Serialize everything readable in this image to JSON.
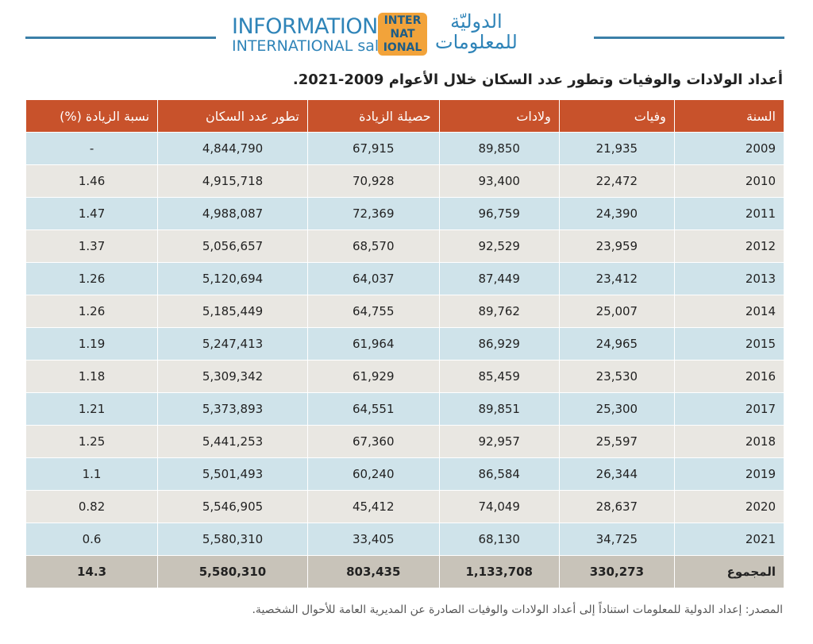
{
  "header": {
    "logo_en_line1": "INFORMATION",
    "logo_en_line2": "INTERNATIONAL sal",
    "logo_mark": [
      "INTER",
      "NAT",
      "IONAL"
    ],
    "logo_ar_line1": "الدوليّة",
    "logo_ar_line2": "للمعلومات"
  },
  "title": "أعداد الولادات والوفيات وتطور عدد السكان خلال الأعوام 2009-2021.",
  "table": {
    "header": [
      "السنة",
      "وفيات",
      "ولادات",
      "حصيلة الزيادة",
      "تطور عدد السكان",
      "نسبة الزيادة (%)"
    ],
    "rows": [
      [
        "2009",
        "21,935",
        "89,850",
        "67,915",
        "4,844,790",
        "-"
      ],
      [
        "2010",
        "22,472",
        "93,400",
        "70,928",
        "4,915,718",
        "1.46"
      ],
      [
        "2011",
        "24,390",
        "96,759",
        "72,369",
        "4,988,087",
        "1.47"
      ],
      [
        "2012",
        "23,959",
        "92,529",
        "68,570",
        "5,056,657",
        "1.37"
      ],
      [
        "2013",
        "23,412",
        "87,449",
        "64,037",
        "5,120,694",
        "1.26"
      ],
      [
        "2014",
        "25,007",
        "89,762",
        "64,755",
        "5,185,449",
        "1.26"
      ],
      [
        "2015",
        "24,965",
        "86,929",
        "61,964",
        "5,247,413",
        "1.19"
      ],
      [
        "2016",
        "23,530",
        "85,459",
        "61,929",
        "5,309,342",
        "1.18"
      ],
      [
        "2017",
        "25,300",
        "89,851",
        "64,551",
        "5,373,893",
        "1.21"
      ],
      [
        "2018",
        "25,597",
        "92,957",
        "67,360",
        "5,441,253",
        "1.25"
      ],
      [
        "2019",
        "26,344",
        "86,584",
        "60,240",
        "5,501,493",
        "1.1"
      ],
      [
        "2020",
        "28,637",
        "74,049",
        "45,412",
        "5,546,905",
        "0.82"
      ],
      [
        "2021",
        "34,725",
        "68,130",
        "33,405",
        "5,580,310",
        "0.6"
      ],
      [
        "المجموع",
        "330,273",
        "1,133,708",
        "803,435",
        "5,580,310",
        "14.3"
      ]
    ]
  },
  "source": "المصدر: إعداد الدولية للمعلومات استناداً إلى أعداد الولادات والوفيات الصادرة عن المديرية العامة للأحوال الشخصية."
}
